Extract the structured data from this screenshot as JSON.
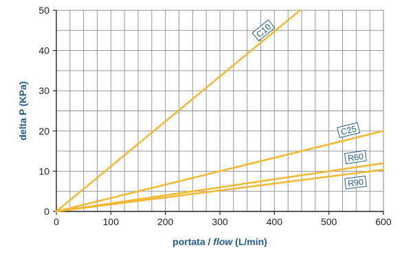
{
  "chart_data": {
    "type": "line",
    "xlabel_parts": {
      "prefix": "portata / ",
      "italic": "flow",
      "suffix": " (L/min)"
    },
    "ylabel": "delta P (KPa)",
    "xlim": [
      0,
      600
    ],
    "ylim": [
      0,
      50
    ],
    "x_major_ticks": [
      0,
      100,
      200,
      300,
      400,
      500,
      600
    ],
    "y_major_ticks": [
      0,
      10,
      20,
      30,
      40,
      50
    ],
    "grid": true,
    "x_grid_step": 25,
    "y_grid_step": 5,
    "series": [
      {
        "name": "C10",
        "points": [
          [
            0,
            0
          ],
          [
            447,
            50
          ]
        ],
        "label_at": [
          380,
          45
        ]
      },
      {
        "name": "C25",
        "points": [
          [
            0,
            0
          ],
          [
            600,
            20
          ]
        ],
        "label_at": [
          536,
          20.2
        ]
      },
      {
        "name": "R60",
        "points": [
          [
            0,
            0
          ],
          [
            600,
            12
          ]
        ],
        "label_at": [
          549,
          13.5
        ]
      },
      {
        "name": "R90",
        "points": [
          [
            0,
            0
          ],
          [
            600,
            10.4
          ]
        ],
        "label_at": [
          549,
          7.2
        ]
      }
    ]
  },
  "colors": {
    "line": "#f5b833",
    "axis_title": "#1e5b8e",
    "tag_border": "#1e5b8e",
    "tag_text": "#1e5b8e",
    "tag_fill": "#ffffff",
    "grid": "#8a8a8a",
    "axis": "#222222",
    "tick_label": "#222222"
  }
}
